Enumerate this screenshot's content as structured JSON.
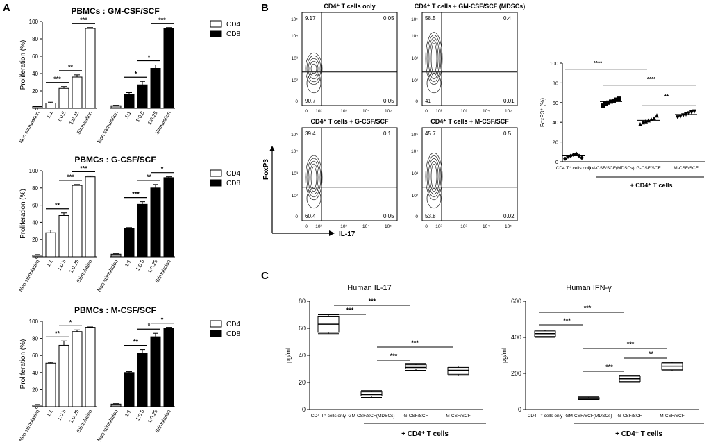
{
  "panel_labels": [
    "A",
    "B",
    "C"
  ],
  "colors": {
    "cd4_fill": "#ffffff",
    "cd8_fill": "#000000",
    "gray_bar": "#999999"
  },
  "chart_data": [
    {
      "id": "A1",
      "type": "bar",
      "title": "PBMCs : GM-CSF/SCF",
      "ylabel": "Proliferation (%)",
      "ylim": [
        0,
        100
      ],
      "yticks": [
        0,
        20,
        40,
        60,
        80,
        100
      ],
      "categories": [
        "Non stimulation",
        "1:1",
        "1:0.5",
        "1:0.25",
        "Stimulation"
      ],
      "series": [
        {
          "name": "CD4",
          "values": [
            2,
            6,
            23,
            36,
            92
          ],
          "errors": [
            0.5,
            1,
            2,
            2.5,
            1
          ]
        },
        {
          "name": "CD8",
          "values": [
            3,
            16,
            27,
            46,
            92
          ],
          "errors": [
            0.5,
            2,
            4,
            4,
            1
          ]
        }
      ],
      "sig": {
        "CD4": [
          "***",
          "**",
          "***"
        ],
        "CD8": [
          "*",
          "*",
          "***"
        ]
      },
      "legend": [
        "CD4",
        "CD8"
      ]
    },
    {
      "id": "A2",
      "type": "bar",
      "title": "PBMCs : G-CSF/SCF",
      "ylabel": "Proliferation (%)",
      "ylim": [
        0,
        100
      ],
      "yticks": [
        0,
        20,
        40,
        60,
        80,
        100
      ],
      "categories": [
        "Non stimulation",
        "1:1",
        "1:0.5",
        "1:0.25",
        "Stimulation"
      ],
      "series": [
        {
          "name": "CD4",
          "values": [
            2,
            28,
            48,
            83,
            93
          ],
          "errors": [
            0.5,
            3,
            3,
            1,
            1
          ]
        },
        {
          "name": "CD8",
          "values": [
            3,
            33,
            61,
            80,
            92
          ],
          "errors": [
            0.5,
            1,
            3,
            4,
            1
          ]
        }
      ],
      "sig": {
        "CD4": [
          "**",
          "***",
          "***"
        ],
        "CD8": [
          "***",
          "**",
          "*"
        ]
      },
      "legend": [
        "CD4",
        "CD8"
      ]
    },
    {
      "id": "A3",
      "type": "bar",
      "title": "PBMCs : M-CSF/SCF",
      "ylabel": "Proliferation (%)",
      "ylim": [
        0,
        100
      ],
      "yticks": [
        0,
        20,
        40,
        60,
        80,
        100
      ],
      "categories": [
        "Non stimulation",
        "1:1",
        "1:0.5",
        "1:0.25",
        "Stimulation"
      ],
      "series": [
        {
          "name": "CD4",
          "values": [
            2,
            51,
            72,
            88,
            93
          ],
          "errors": [
            0.5,
            1,
            5,
            2,
            0.5
          ]
        },
        {
          "name": "CD8",
          "values": [
            3,
            40,
            63,
            82,
            92
          ],
          "errors": [
            0.5,
            1,
            4,
            4,
            1
          ]
        }
      ],
      "sig": {
        "CD4": [
          "**",
          "*"
        ],
        "CD8": [
          "**",
          "*",
          "*"
        ]
      },
      "legend": [
        "CD4",
        "CD8"
      ]
    },
    {
      "id": "B-flow",
      "type": "scatter",
      "xlabel": "IL-17",
      "ylabel": "FoxP3",
      "axis_ticks": [
        "0",
        "10²",
        "10³",
        "10⁴",
        "10⁵"
      ],
      "plots": [
        {
          "title": "CD4⁺ T cells only",
          "q": [
            "9.17",
            "0.05",
            "90.7",
            "0.05"
          ]
        },
        {
          "title": "CD4⁺ T cells + GM-CSF/SCF (MDSCs)",
          "q": [
            "58.5",
            "0.4",
            "41",
            "0.01"
          ]
        },
        {
          "title": "CD4⁺ T cells + G-CSF/SCF",
          "q": [
            "39.4",
            "0.1",
            "60.4",
            "0.05"
          ]
        },
        {
          "title": "CD4⁺ T cells + M-CSF/SCF",
          "q": [
            "45.7",
            "0.5",
            "53.8",
            "0.02"
          ]
        }
      ]
    },
    {
      "id": "B-dot",
      "type": "scatter",
      "ylabel": "FoxP3⁺ (%)",
      "ylim": [
        0,
        100
      ],
      "yticks": [
        0,
        20,
        40,
        60,
        80,
        100
      ],
      "categories": [
        "CD4 T⁺ cells only",
        "GM-CSF/SCF(MDSCs)",
        "G-CSF/SCF",
        "M-CSF/SCF"
      ],
      "means": [
        6,
        61,
        42,
        48
      ],
      "points": [
        [
          3,
          5,
          6,
          7,
          8,
          6,
          4
        ],
        [
          57,
          59,
          60,
          61,
          62,
          63,
          64
        ],
        [
          38,
          40,
          41,
          42,
          43,
          44,
          47
        ],
        [
          45,
          46,
          47,
          48,
          49,
          50,
          51
        ]
      ],
      "sig_labels": [
        "****",
        "****",
        "**"
      ],
      "group_label": "+ CD4⁺ T cells"
    },
    {
      "id": "C1",
      "type": "box",
      "title": "Human IL-17",
      "ylabel": "pg/ml",
      "ylim": [
        0,
        80
      ],
      "yticks": [
        0,
        20,
        40,
        60,
        80
      ],
      "categories": [
        "CD4 T⁺ cells only",
        "GM-CSF/SCF(MDSCs)",
        "G-CSF/SCF",
        "M-CSF/SCF"
      ],
      "boxes": [
        [
          56,
          57,
          63,
          69,
          70
        ],
        [
          9,
          10,
          11,
          13,
          14
        ],
        [
          29,
          30,
          31,
          33,
          34
        ],
        [
          25,
          26,
          29,
          31,
          32
        ]
      ],
      "sig_labels": [
        "***",
        "***",
        "***",
        "***"
      ],
      "group_label": "+ CD4⁺ T cells"
    },
    {
      "id": "C2",
      "type": "box",
      "title": "Human IFN-γ",
      "ylabel": "pg/ml",
      "ylim": [
        0,
        600
      ],
      "yticks": [
        0,
        200,
        400,
        600
      ],
      "categories": [
        "CD4 T⁺ cells only",
        "GM-CSF/SCF(MDSCs)",
        "G-CSF/SCF",
        "M-CSF/SCF"
      ],
      "boxes": [
        [
          400,
          405,
          420,
          435,
          440
        ],
        [
          55,
          57,
          62,
          66,
          70
        ],
        [
          150,
          155,
          170,
          185,
          190
        ],
        [
          215,
          220,
          240,
          258,
          262
        ]
      ],
      "sig_labels": [
        "***",
        "***",
        "***",
        "***",
        "**"
      ],
      "group_label": "+ CD4⁺ T cells"
    }
  ]
}
